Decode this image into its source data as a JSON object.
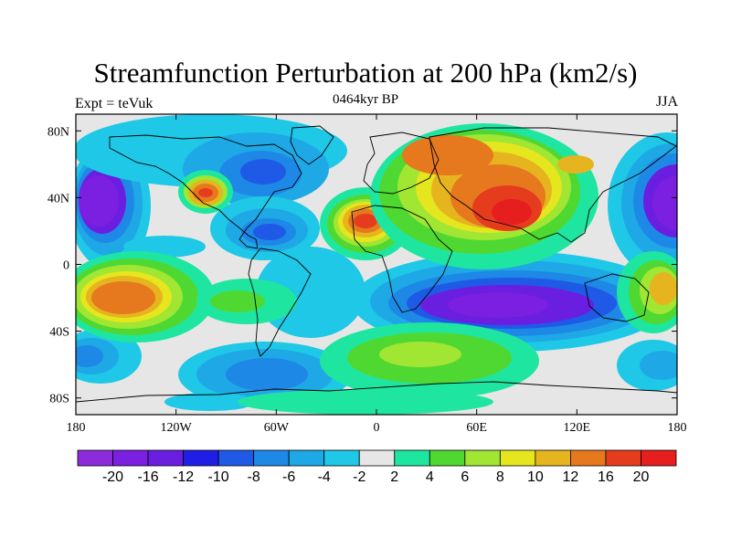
{
  "title": "Streamfunction Perturbation at 200 hPa (km2/s)",
  "left_label": "Expt = teVuk",
  "center_label": "0464kyr BP",
  "right_label": "JJA",
  "lat_ticks": [
    {
      "lat": 80,
      "label": "80N"
    },
    {
      "lat": 40,
      "label": "40N"
    },
    {
      "lat": 0,
      "label": "0"
    },
    {
      "lat": -40,
      "label": "40S"
    },
    {
      "lat": -80,
      "label": "80S"
    }
  ],
  "lon_ticks": [
    {
      "lon": -180,
      "label": "180"
    },
    {
      "lon": -120,
      "label": "120W"
    },
    {
      "lon": -60,
      "label": "60W"
    },
    {
      "lon": 0,
      "label": "0"
    },
    {
      "lon": 60,
      "label": "60E"
    },
    {
      "lon": 120,
      "label": "120E"
    },
    {
      "lon": 180,
      "label": "180"
    }
  ],
  "colorbar": {
    "colors": [
      "#8c2bd9",
      "#7b1fe0",
      "#6a1fe0",
      "#1e1ee6",
      "#1e5ae6",
      "#1e88e6",
      "#1ea8e6",
      "#1ec8e6",
      "#e6e6e6",
      "#1ee6a0",
      "#50d832",
      "#a0e632",
      "#e6e61e",
      "#e6b41e",
      "#e6781e",
      "#e63c1e",
      "#e61e1e"
    ],
    "labels": [
      "-20",
      "-16",
      "-12",
      "-10",
      "-8",
      "-6",
      "-4",
      "-2",
      "2",
      "4",
      "6",
      "8",
      "10",
      "12",
      "16",
      "20"
    ]
  },
  "features": [
    {
      "name": "negative-anomaly-west-pacific",
      "lon": 165,
      "lat": 45,
      "value": -18
    },
    {
      "name": "negative-anomaly-north-pacific",
      "lon": -165,
      "lat": 35,
      "value": -18
    },
    {
      "name": "positive-anomaly-north-america",
      "lon": -105,
      "lat": 40,
      "value": 12
    },
    {
      "name": "negative-anomaly-canada",
      "lon": -75,
      "lat": 55,
      "value": -12
    },
    {
      "name": "negative-anomaly-caribbean",
      "lon": -75,
      "lat": 18,
      "value": -10
    },
    {
      "name": "positive-anomaly-atlantic",
      "lon": -10,
      "lat": 22,
      "value": 16
    },
    {
      "name": "positive-anomaly-asia",
      "lon": 85,
      "lat": 28,
      "value": 20
    },
    {
      "name": "positive-anomaly-eurasia-north",
      "lon": 50,
      "lat": 65,
      "value": 12
    },
    {
      "name": "positive-anomaly-south-pacific",
      "lon": -150,
      "lat": -20,
      "value": 16
    },
    {
      "name": "negative-anomaly-indian-ocean",
      "lon": 80,
      "lat": -32,
      "value": -16
    },
    {
      "name": "negative-anomaly-antarctica",
      "lon": -65,
      "lat": -65,
      "value": -8
    },
    {
      "name": "positive-anomaly-southern-ocean",
      "lon": 40,
      "lat": -55,
      "value": 8
    }
  ]
}
